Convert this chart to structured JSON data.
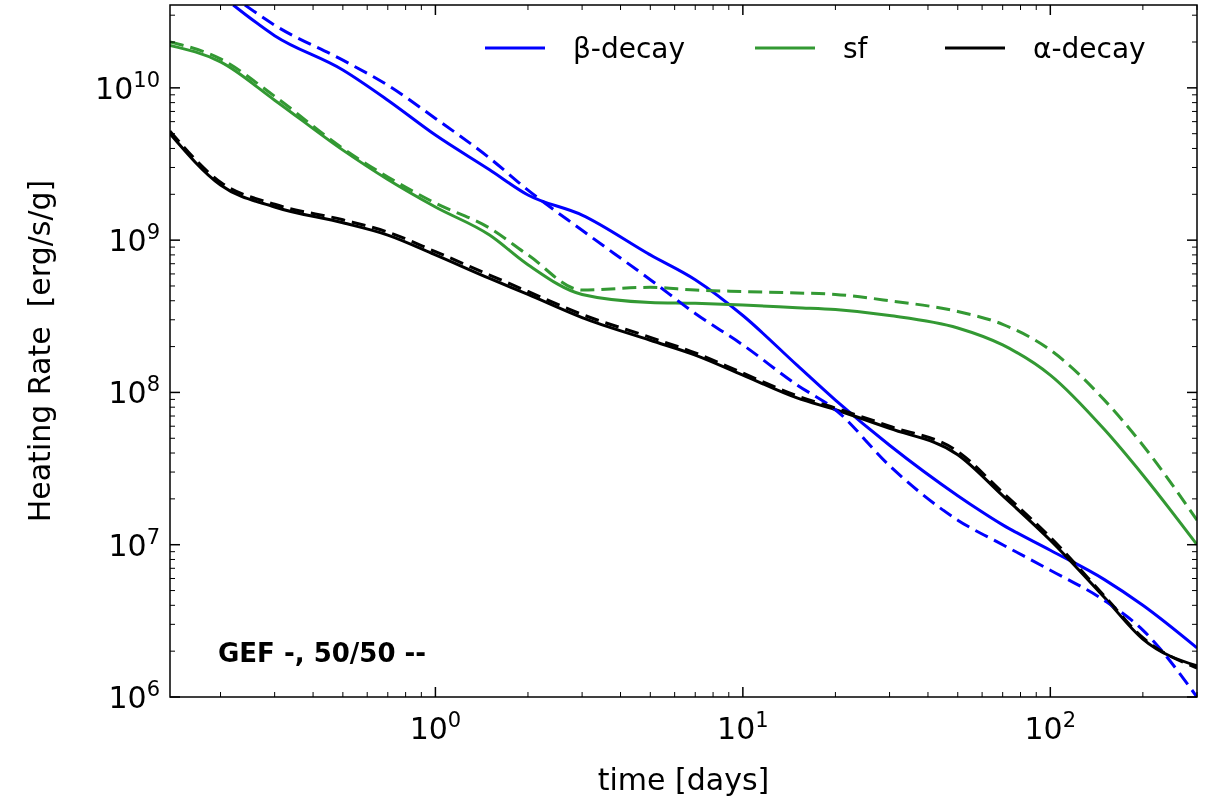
{
  "chart_data": {
    "type": "line",
    "xlabel": "time [days]",
    "ylabel": "Heating Rate  [erg/s/g]",
    "log": "xy",
    "xlim": [
      0.137,
      300
    ],
    "ylim": [
      1000000,
      35000000000
    ],
    "xticks": [
      {
        "value": 1,
        "label": "10$^{0}$"
      },
      {
        "value": 10,
        "label": "10$^{1}$"
      },
      {
        "value": 100,
        "label": "10$^{2}$"
      }
    ],
    "yticks": [
      {
        "value": 1000000,
        "label": "10$^{6}$"
      },
      {
        "value": 10000000,
        "label": "10$^{7}$"
      },
      {
        "value": 100000000,
        "label": "10$^{8}$"
      },
      {
        "value": 1000000000,
        "label": "10$^{9}$"
      },
      {
        "value": 10000000000,
        "label": "10$^{10}$"
      }
    ],
    "legend": "top right",
    "annotations": [
      "GEF -, 50/50 --"
    ],
    "series": [
      {
        "name": "β-decay",
        "color": "#0000ff",
        "line_style": "solid",
        "x": [
          0.22,
          0.3,
          0.5,
          0.7,
          1,
          1.5,
          2,
          3,
          5,
          7,
          10,
          15,
          20,
          30,
          50,
          70,
          100,
          150,
          200,
          300
        ],
        "values": [
          35000000000,
          22000000000,
          13100000000,
          8300000000,
          4900000000,
          2900000000,
          1980000000,
          1460000000,
          800000000,
          550000000,
          320000000,
          151000000,
          89000000,
          45000000,
          21000000,
          13500000,
          9200000,
          5900000,
          4000000,
          2100000
        ]
      },
      {
        "name": "sf",
        "color": "#339933",
        "line_style": "solid",
        "x": [
          0.137,
          0.2,
          0.3,
          0.5,
          0.7,
          1,
          1.5,
          2,
          3,
          5,
          7,
          10,
          15,
          20,
          30,
          50,
          70,
          100,
          150,
          200,
          300
        ],
        "values": [
          19000000000,
          14800000000,
          8300000000,
          3900000000,
          2500000000,
          1650000000,
          1080000000,
          690000000,
          440000000,
          390000000,
          385000000,
          375000000,
          360000000,
          350000000,
          320000000,
          265000000,
          205000000,
          130000000,
          57000000,
          28700000,
          10000000
        ]
      },
      {
        "name": "α-decay",
        "color": "#000000",
        "line_style": "solid",
        "x": [
          0.137,
          0.2,
          0.3,
          0.5,
          0.7,
          1,
          1.5,
          2,
          3,
          5,
          7,
          10,
          15,
          20,
          30,
          50,
          70,
          100,
          150,
          200,
          300
        ],
        "values": [
          5000000000,
          2300000000,
          1650000000,
          1300000000,
          1080000000,
          800000000,
          560000000,
          440000000,
          310000000,
          220000000,
          176000000,
          130000000,
          92000000,
          77000000,
          58000000,
          39000000,
          21000000,
          10700000,
          4500000,
          2400000,
          1600000
        ]
      },
      {
        "color": "#0000ff",
        "line_style": "dashed",
        "x": [
          0.24,
          0.3,
          0.5,
          0.7,
          1,
          1.5,
          2,
          3,
          5,
          7,
          10,
          15,
          20,
          30,
          50,
          70,
          100,
          150,
          200,
          300
        ],
        "values": [
          35000000000,
          25800000000,
          15200000000,
          10400000000,
          6300000000,
          3460000000,
          2130000000,
          1160000000,
          550000000,
          330000000,
          205000000,
          112000000,
          77000000,
          33000000,
          14500000,
          10000000,
          6800000,
          4300000,
          2750000,
          1000000
        ]
      },
      {
        "color": "#339933",
        "line_style": "dashed",
        "x": [
          0.137,
          0.2,
          0.3,
          0.5,
          0.7,
          1,
          1.5,
          2,
          3,
          5,
          7,
          10,
          15,
          20,
          30,
          50,
          70,
          100,
          150,
          200,
          300
        ],
        "values": [
          20000000000,
          15500000000,
          8800000000,
          4000000000,
          2600000000,
          1750000000,
          1200000000,
          800000000,
          470000000,
          490000000,
          470000000,
          460000000,
          450000000,
          440000000,
          400000000,
          340000000,
          280000000,
          190000000,
          89000000,
          45000000,
          14500000
        ]
      },
      {
        "color": "#000000",
        "line_style": "dashed",
        "x": [
          0.137,
          0.2,
          0.3,
          0.5,
          0.7,
          1,
          1.5,
          2,
          3,
          5,
          7,
          10,
          15,
          20,
          30,
          50,
          70,
          100,
          150,
          200,
          300
        ],
        "values": [
          5200000000,
          2400000000,
          1720000000,
          1360000000,
          1130000000,
          840000000,
          590000000,
          460000000,
          325000000,
          230000000,
          182000000,
          134000000,
          95000000,
          79000000,
          60000000,
          41000000,
          22000000,
          11200000,
          4600000,
          2450000,
          1550000
        ]
      }
    ]
  }
}
